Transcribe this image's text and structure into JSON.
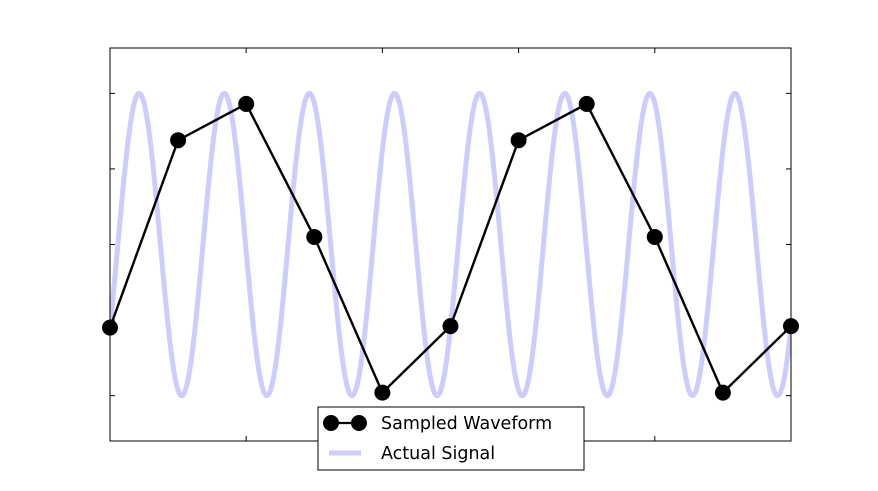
{
  "chart_data": {
    "type": "line",
    "title": "",
    "xlabel": "",
    "ylabel": "",
    "xlim": [
      0,
      10
    ],
    "ylim": [
      -1.3,
      1.3
    ],
    "xticks": [
      2,
      4,
      6,
      8
    ],
    "yticks": [
      -1,
      -0.5,
      0,
      0.5,
      1
    ],
    "tick_labels_visible": false,
    "grid": false,
    "legend_position": "bottom-center",
    "series": [
      {
        "name": "Sampled Waveform",
        "style": "line-with-markers",
        "color": "#000000",
        "x": [
          0,
          1,
          2,
          3,
          4,
          5,
          6,
          7,
          8,
          9,
          10
        ],
        "y": [
          -0.55,
          0.69,
          0.93,
          0.05,
          -0.98,
          -0.54,
          0.69,
          0.93,
          0.05,
          -0.98,
          -0.54
        ]
      },
      {
        "name": "Actual Signal",
        "style": "line",
        "color": "#ccccff",
        "function": "sin",
        "amplitude": 1,
        "frequency": 0.8,
        "phase": -0.58
      }
    ]
  }
}
